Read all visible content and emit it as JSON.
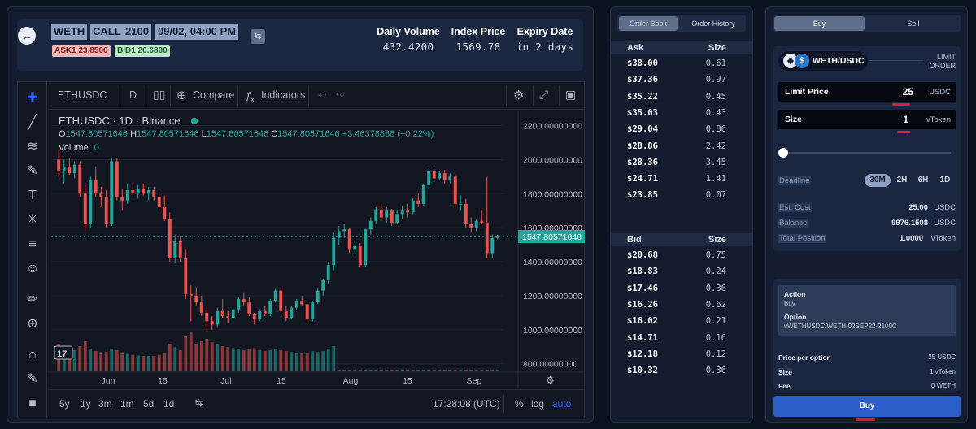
{
  "header": {
    "option_chips": [
      "WETH",
      "CALL",
      "2100",
      "09/02, 04:00 PM"
    ],
    "ask_tag": "ASK1 23.8500",
    "bid_tag": "BID1 20.6800",
    "stats": [
      {
        "label": "Daily Volume",
        "value": "432.4200"
      },
      {
        "label": "Index Price",
        "value": "1569.78"
      },
      {
        "label": "Expiry Date",
        "value": "in 2 days"
      }
    ],
    "icons": {
      "back": "arrow-left-icon",
      "swap": "swap-icon"
    }
  },
  "chart_toolbar": {
    "symbol": "ETHUSDC",
    "interval": "D",
    "compare": "Compare",
    "indicators": "Indicators"
  },
  "chart_legend": {
    "title": "ETHUSDC · 1D · Binance",
    "ohlc": {
      "O": "1547.80571646",
      "H": "1547.80571646",
      "L": "1547.80571646",
      "C": "1547.80571646",
      "change": "+3.46378838 (+0.22%)"
    },
    "volume_label": "Volume",
    "volume_value": "0"
  },
  "chart_bottom": {
    "ranges": [
      "5y",
      "1y",
      "3m",
      "1m",
      "5d",
      "1d"
    ],
    "time": "17:28:08 (UTC)",
    "pct": "%",
    "log": "log",
    "auto": "auto"
  },
  "chart_data": {
    "type": "candlestick",
    "price_axis_ticks": [
      "2200.00000000",
      "2000.00000000",
      "1800.00000000",
      "1600.00000000",
      "1400.00000000",
      "1200.00000000",
      "1000.00000000",
      "800.00000000"
    ],
    "time_axis_ticks": [
      "Jun",
      "15",
      "Jul",
      "15",
      "Aug",
      "15",
      "Sep"
    ],
    "last_price_label": "1547.80571646",
    "ylim": [
      760,
      2260
    ],
    "series": [
      {
        "o": 2000,
        "h": 2060,
        "l": 1900,
        "c": 1930,
        "v": 0.55
      },
      {
        "o": 1930,
        "h": 2000,
        "l": 1860,
        "c": 1960,
        "v": 0.45
      },
      {
        "o": 1960,
        "h": 2010,
        "l": 1910,
        "c": 1920,
        "v": 0.4
      },
      {
        "o": 1920,
        "h": 1990,
        "l": 1890,
        "c": 1970,
        "v": 0.42
      },
      {
        "o": 1970,
        "h": 1990,
        "l": 1780,
        "c": 1800,
        "v": 0.5
      },
      {
        "o": 1800,
        "h": 1850,
        "l": 1580,
        "c": 1620,
        "v": 0.6
      },
      {
        "o": 1620,
        "h": 1900,
        "l": 1600,
        "c": 1880,
        "v": 0.45
      },
      {
        "o": 1880,
        "h": 1960,
        "l": 1780,
        "c": 1800,
        "v": 0.4
      },
      {
        "o": 1800,
        "h": 1840,
        "l": 1720,
        "c": 1780,
        "v": 0.35
      },
      {
        "o": 1780,
        "h": 1820,
        "l": 1600,
        "c": 1620,
        "v": 0.38
      },
      {
        "o": 1620,
        "h": 2010,
        "l": 1610,
        "c": 1990,
        "v": 0.45
      },
      {
        "o": 1990,
        "h": 2010,
        "l": 1760,
        "c": 1780,
        "v": 0.42
      },
      {
        "o": 1780,
        "h": 1830,
        "l": 1700,
        "c": 1760,
        "v": 0.35
      },
      {
        "o": 1760,
        "h": 1860,
        "l": 1740,
        "c": 1820,
        "v": 0.34
      },
      {
        "o": 1820,
        "h": 1860,
        "l": 1780,
        "c": 1800,
        "v": 0.32
      },
      {
        "o": 1800,
        "h": 1850,
        "l": 1770,
        "c": 1830,
        "v": 0.31
      },
      {
        "o": 1830,
        "h": 1860,
        "l": 1790,
        "c": 1800,
        "v": 0.3
      },
      {
        "o": 1800,
        "h": 1840,
        "l": 1760,
        "c": 1820,
        "v": 0.3
      },
      {
        "o": 1820,
        "h": 1840,
        "l": 1760,
        "c": 1780,
        "v": 0.3
      },
      {
        "o": 1780,
        "h": 1810,
        "l": 1700,
        "c": 1720,
        "v": 0.32
      },
      {
        "o": 1720,
        "h": 1790,
        "l": 1640,
        "c": 1650,
        "v": 0.36
      },
      {
        "o": 1650,
        "h": 1690,
        "l": 1400,
        "c": 1420,
        "v": 0.55
      },
      {
        "o": 1420,
        "h": 1560,
        "l": 1390,
        "c": 1520,
        "v": 0.48
      },
      {
        "o": 1520,
        "h": 1550,
        "l": 1400,
        "c": 1420,
        "v": 0.42
      },
      {
        "o": 1420,
        "h": 1470,
        "l": 1180,
        "c": 1210,
        "v": 0.7
      },
      {
        "o": 1210,
        "h": 1260,
        "l": 1050,
        "c": 1200,
        "v": 0.78
      },
      {
        "o": 1200,
        "h": 1250,
        "l": 1140,
        "c": 1160,
        "v": 0.55
      },
      {
        "o": 1160,
        "h": 1200,
        "l": 1080,
        "c": 1100,
        "v": 0.6
      },
      {
        "o": 1100,
        "h": 1130,
        "l": 1000,
        "c": 1050,
        "v": 0.65
      },
      {
        "o": 1050,
        "h": 1080,
        "l": 1000,
        "c": 1030,
        "v": 0.58
      },
      {
        "o": 1030,
        "h": 1130,
        "l": 1010,
        "c": 1110,
        "v": 0.55
      },
      {
        "o": 1110,
        "h": 1180,
        "l": 1070,
        "c": 1080,
        "v": 0.5
      },
      {
        "o": 1080,
        "h": 1110,
        "l": 1040,
        "c": 1070,
        "v": 0.48
      },
      {
        "o": 1070,
        "h": 1130,
        "l": 1060,
        "c": 1120,
        "v": 0.46
      },
      {
        "o": 1120,
        "h": 1190,
        "l": 1100,
        "c": 1180,
        "v": 0.45
      },
      {
        "o": 1180,
        "h": 1220,
        "l": 1140,
        "c": 1160,
        "v": 0.42
      },
      {
        "o": 1160,
        "h": 1190,
        "l": 1080,
        "c": 1090,
        "v": 0.44
      },
      {
        "o": 1090,
        "h": 1100,
        "l": 1030,
        "c": 1060,
        "v": 0.46
      },
      {
        "o": 1060,
        "h": 1120,
        "l": 1050,
        "c": 1110,
        "v": 0.42
      },
      {
        "o": 1110,
        "h": 1140,
        "l": 1080,
        "c": 1090,
        "v": 0.4
      },
      {
        "o": 1090,
        "h": 1180,
        "l": 1080,
        "c": 1170,
        "v": 0.42
      },
      {
        "o": 1170,
        "h": 1240,
        "l": 1160,
        "c": 1230,
        "v": 0.44
      },
      {
        "o": 1230,
        "h": 1250,
        "l": 1100,
        "c": 1110,
        "v": 0.42
      },
      {
        "o": 1110,
        "h": 1140,
        "l": 1050,
        "c": 1070,
        "v": 0.4
      },
      {
        "o": 1070,
        "h": 1140,
        "l": 1060,
        "c": 1130,
        "v": 0.38
      },
      {
        "o": 1130,
        "h": 1180,
        "l": 1120,
        "c": 1170,
        "v": 0.36
      },
      {
        "o": 1170,
        "h": 1200,
        "l": 1140,
        "c": 1150,
        "v": 0.35
      },
      {
        "o": 1150,
        "h": 1160,
        "l": 1040,
        "c": 1060,
        "v": 0.36
      },
      {
        "o": 1060,
        "h": 1170,
        "l": 1050,
        "c": 1160,
        "v": 0.4
      },
      {
        "o": 1160,
        "h": 1240,
        "l": 1150,
        "c": 1230,
        "v": 0.38
      },
      {
        "o": 1230,
        "h": 1300,
        "l": 1200,
        "c": 1290,
        "v": 0.4
      },
      {
        "o": 1290,
        "h": 1400,
        "l": 1270,
        "c": 1380,
        "v": 0.45
      },
      {
        "o": 1380,
        "h": 1570,
        "l": 1350,
        "c": 1540,
        "v": 0.5
      },
      {
        "o": 1540,
        "h": 1610,
        "l": 1500,
        "c": 1580,
        "v": 0.02
      },
      {
        "o": 1580,
        "h": 1620,
        "l": 1540,
        "c": 1590,
        "v": 0.02
      },
      {
        "o": 1590,
        "h": 1600,
        "l": 1450,
        "c": 1470,
        "v": 0.02
      },
      {
        "o": 1470,
        "h": 1520,
        "l": 1440,
        "c": 1490,
        "v": 0.02
      },
      {
        "o": 1490,
        "h": 1510,
        "l": 1370,
        "c": 1380,
        "v": 0.02
      },
      {
        "o": 1380,
        "h": 1600,
        "l": 1370,
        "c": 1590,
        "v": 0.02
      },
      {
        "o": 1590,
        "h": 1660,
        "l": 1560,
        "c": 1640,
        "v": 0.02
      },
      {
        "o": 1640,
        "h": 1720,
        "l": 1620,
        "c": 1700,
        "v": 0.02
      },
      {
        "o": 1700,
        "h": 1740,
        "l": 1640,
        "c": 1660,
        "v": 0.02
      },
      {
        "o": 1660,
        "h": 1720,
        "l": 1630,
        "c": 1700,
        "v": 0.02
      },
      {
        "o": 1700,
        "h": 1710,
        "l": 1610,
        "c": 1630,
        "v": 0.02
      },
      {
        "o": 1630,
        "h": 1700,
        "l": 1620,
        "c": 1680,
        "v": 0.02
      },
      {
        "o": 1680,
        "h": 1730,
        "l": 1650,
        "c": 1700,
        "v": 0.02
      },
      {
        "o": 1700,
        "h": 1740,
        "l": 1660,
        "c": 1690,
        "v": 0.02
      },
      {
        "o": 1690,
        "h": 1770,
        "l": 1680,
        "c": 1760,
        "v": 0.02
      },
      {
        "o": 1760,
        "h": 1800,
        "l": 1720,
        "c": 1740,
        "v": 0.02
      },
      {
        "o": 1740,
        "h": 1860,
        "l": 1730,
        "c": 1850,
        "v": 0.02
      },
      {
        "o": 1850,
        "h": 1950,
        "l": 1830,
        "c": 1930,
        "v": 0.02
      },
      {
        "o": 1930,
        "h": 1950,
        "l": 1870,
        "c": 1890,
        "v": 0.02
      },
      {
        "o": 1890,
        "h": 1930,
        "l": 1880,
        "c": 1920,
        "v": 0.02
      },
      {
        "o": 1920,
        "h": 1940,
        "l": 1860,
        "c": 1880,
        "v": 0.02
      },
      {
        "o": 1880,
        "h": 1920,
        "l": 1860,
        "c": 1900,
        "v": 0.02
      },
      {
        "o": 1900,
        "h": 1910,
        "l": 1720,
        "c": 1740,
        "v": 0.02
      },
      {
        "o": 1740,
        "h": 1790,
        "l": 1700,
        "c": 1740,
        "v": 0.02
      },
      {
        "o": 1740,
        "h": 1770,
        "l": 1600,
        "c": 1620,
        "v": 0.02
      },
      {
        "o": 1620,
        "h": 1660,
        "l": 1570,
        "c": 1600,
        "v": 0.02
      },
      {
        "o": 1600,
        "h": 1650,
        "l": 1580,
        "c": 1640,
        "v": 0.02
      },
      {
        "o": 1640,
        "h": 1700,
        "l": 1620,
        "c": 1630,
        "v": 0.02
      },
      {
        "o": 1630,
        "h": 1900,
        "l": 1420,
        "c": 1450,
        "v": 0.02
      },
      {
        "o": 1450,
        "h": 1560,
        "l": 1420,
        "c": 1540,
        "v": 0.02
      },
      {
        "o": 1540,
        "h": 1560,
        "l": 1530,
        "c": 1548,
        "v": 0.02
      }
    ]
  },
  "orderbook": {
    "tabs": [
      "Order Book",
      "Order History"
    ],
    "ask_header": {
      "left": "Ask",
      "right": "Size"
    },
    "asks": [
      {
        "price": "$38.00",
        "size": "0.61"
      },
      {
        "price": "$37.36",
        "size": "0.97"
      },
      {
        "price": "$35.22",
        "size": "0.45"
      },
      {
        "price": "$35.03",
        "size": "0.43"
      },
      {
        "price": "$29.04",
        "size": "0.86"
      },
      {
        "price": "$28.86",
        "size": "2.42"
      },
      {
        "price": "$28.36",
        "size": "3.45"
      },
      {
        "price": "$24.71",
        "size": "1.41"
      },
      {
        "price": "$23.85",
        "size": "0.07"
      }
    ],
    "bid_header": {
      "left": "Bid",
      "right": "Size"
    },
    "bids": [
      {
        "price": "$20.68",
        "size": "0.75"
      },
      {
        "price": "$18.83",
        "size": "0.24"
      },
      {
        "price": "$17.46",
        "size": "0.36"
      },
      {
        "price": "$16.26",
        "size": "0.62"
      },
      {
        "price": "$16.02",
        "size": "0.21"
      },
      {
        "price": "$14.71",
        "size": "0.16"
      },
      {
        "price": "$12.18",
        "size": "0.12"
      },
      {
        "price": "$10.32",
        "size": "0.36"
      }
    ]
  },
  "trade": {
    "tabs": [
      "Buy",
      "Sell"
    ],
    "pair": "WETH/USDC",
    "order_type": [
      "LIMIT",
      "ORDER"
    ],
    "limit_price": {
      "label": "Limit Price",
      "value": "25",
      "unit": "USDC"
    },
    "size": {
      "label": "Size",
      "value": "1",
      "unit": "vToken"
    },
    "slider_value": 0,
    "deadline": {
      "label": "Deadline",
      "options": [
        "30M",
        "2H",
        "6H",
        "1D"
      ],
      "selected": "30M"
    },
    "est_cost": {
      "label": "Est. Cost",
      "value": "25.00",
      "unit": "USDC"
    },
    "balance": {
      "label": "Balance",
      "value": "9976.1508",
      "unit": "USDC"
    },
    "total_position": {
      "label": "Total Position",
      "value": "1.0000",
      "unit": "vToken"
    },
    "summary": {
      "action_label": "Action",
      "action_value": "Buy",
      "option_label": "Option",
      "option_value": "vWETHUSDC/WETH-02SEP22-2100C",
      "price_per_option_label": "Price per option",
      "price_per_option_value": "25 USDC",
      "size_label": "Size",
      "size_value": "1 vToken",
      "fee_label": "Fee",
      "fee_value": "0 WETH"
    },
    "submit_label": "Buy",
    "colors": {
      "accent": "#2b5fc7",
      "up": "#26a69a",
      "down": "#ef5350",
      "mark": "#e01b2a"
    }
  }
}
